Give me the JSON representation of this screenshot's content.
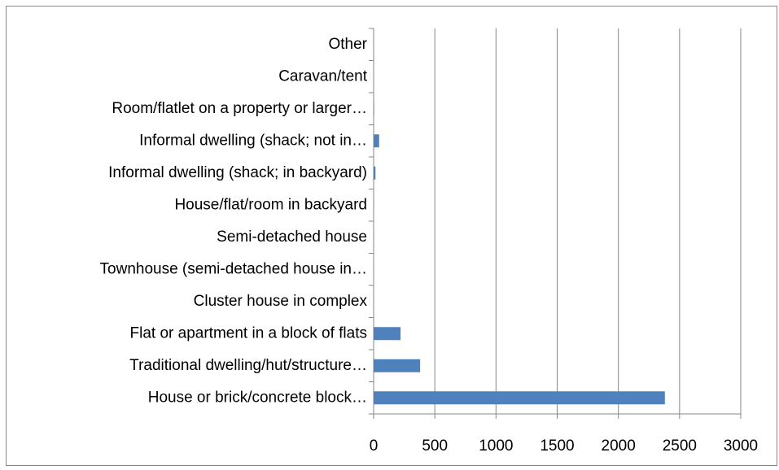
{
  "chart_data": {
    "type": "bar",
    "orientation": "horizontal",
    "categories": [
      "House or brick/concrete block…",
      "Traditional dwelling/hut/structure…",
      "Flat or apartment in a block of flats",
      "Cluster house in complex",
      "Townhouse (semi-detached house in…",
      "Semi-detached house",
      "House/flat/room in backyard",
      "Informal dwelling (shack; in backyard)",
      "Informal dwelling (shack; not in…",
      "Room/flatlet on a property or larger…",
      "Caravan/tent",
      "Other"
    ],
    "values": [
      2380,
      380,
      220,
      0,
      2,
      2,
      3,
      15,
      45,
      4,
      0,
      1
    ],
    "color": "#4f81bd",
    "xlim": [
      0,
      3000
    ],
    "xticks": [
      0,
      500,
      1000,
      1500,
      2000,
      2500,
      3000
    ],
    "grid": true
  }
}
